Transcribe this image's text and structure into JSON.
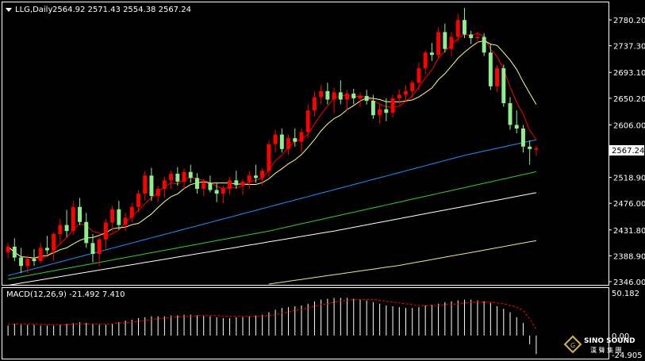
{
  "header": {
    "symbol": "LLG,Daily",
    "ohlc": "2564.92 2571.43 2554.38 2567.24"
  },
  "price_axis": {
    "ticks": [
      "2780.20",
      "2737.30",
      "2693.10",
      "2650.20",
      "2606.00",
      "2518.90",
      "2476.00",
      "2431.80",
      "2388.90",
      "2346.00"
    ],
    "current_price_label": "2567.24"
  },
  "macd": {
    "label": "MACD(12,26,9) -21.492 7.410",
    "top_label": "50.182",
    "zero_label": "0.00",
    "bottom_label": "-24.905"
  },
  "watermark": {
    "brand_line1": "SINO SOUND",
    "brand_line2": "漢 聲 集 團"
  },
  "colors": {
    "background": "#000000",
    "grid_border": "#ffffff",
    "candle_up": "#ff0000",
    "candle_down": "#90ee90",
    "ma_fast": "#ff0000",
    "ma_yellow": "#ffff80",
    "ma_blue": "#1e90ff",
    "ma_green": "#32cd32",
    "ma_white": "#ffffff",
    "ma_long": "#f0e68c",
    "macd_hist": "#ffffff",
    "macd_signal": "#ff0000"
  },
  "chart_data": {
    "type": "candlestick",
    "title": "LLG,Daily",
    "ylim": [
      2346.0,
      2800.0
    ],
    "candles": [
      [
        2395,
        2410,
        2385,
        2404
      ],
      [
        2404,
        2418,
        2380,
        2386
      ],
      [
        2386,
        2402,
        2360,
        2372
      ],
      [
        2372,
        2388,
        2360,
        2384
      ],
      [
        2384,
        2400,
        2372,
        2380
      ],
      [
        2380,
        2410,
        2376,
        2402
      ],
      [
        2402,
        2422,
        2392,
        2398
      ],
      [
        2398,
        2428,
        2380,
        2425
      ],
      [
        2425,
        2450,
        2410,
        2440
      ],
      [
        2440,
        2465,
        2420,
        2430
      ],
      [
        2430,
        2480,
        2424,
        2470
      ],
      [
        2470,
        2485,
        2440,
        2445
      ],
      [
        2445,
        2460,
        2402,
        2410
      ],
      [
        2410,
        2425,
        2378,
        2392
      ],
      [
        2392,
        2420,
        2372,
        2416
      ],
      [
        2416,
        2450,
        2400,
        2444
      ],
      [
        2444,
        2472,
        2430,
        2466
      ],
      [
        2466,
        2480,
        2432,
        2440
      ],
      [
        2440,
        2460,
        2430,
        2452
      ],
      [
        2452,
        2476,
        2444,
        2470
      ],
      [
        2470,
        2498,
        2462,
        2492
      ],
      [
        2492,
        2530,
        2480,
        2522
      ],
      [
        2522,
        2535,
        2480,
        2488
      ],
      [
        2488,
        2505,
        2478,
        2500
      ],
      [
        2500,
        2520,
        2486,
        2514
      ],
      [
        2514,
        2530,
        2500,
        2525
      ],
      [
        2525,
        2536,
        2505,
        2512
      ],
      [
        2512,
        2534,
        2500,
        2528
      ],
      [
        2528,
        2540,
        2510,
        2518
      ],
      [
        2518,
        2526,
        2492,
        2500
      ],
      [
        2500,
        2516,
        2488,
        2510
      ],
      [
        2510,
        2522,
        2494,
        2498
      ],
      [
        2498,
        2510,
        2478,
        2492
      ],
      [
        2492,
        2505,
        2476,
        2500
      ],
      [
        2500,
        2520,
        2490,
        2514
      ],
      [
        2514,
        2530,
        2500,
        2506
      ],
      [
        2506,
        2516,
        2490,
        2512
      ],
      [
        2512,
        2530,
        2500,
        2522
      ],
      [
        2522,
        2540,
        2510,
        2518
      ],
      [
        2518,
        2534,
        2505,
        2530
      ],
      [
        2530,
        2580,
        2520,
        2574
      ],
      [
        2574,
        2598,
        2560,
        2590
      ],
      [
        2590,
        2600,
        2560,
        2566
      ],
      [
        2566,
        2590,
        2556,
        2584
      ],
      [
        2584,
        2600,
        2570,
        2578
      ],
      [
        2578,
        2600,
        2560,
        2594
      ],
      [
        2594,
        2640,
        2584,
        2630
      ],
      [
        2630,
        2662,
        2620,
        2652
      ],
      [
        2652,
        2672,
        2640,
        2662
      ],
      [
        2662,
        2676,
        2640,
        2648
      ],
      [
        2648,
        2668,
        2626,
        2660
      ],
      [
        2660,
        2680,
        2640,
        2648
      ],
      [
        2648,
        2664,
        2630,
        2658
      ],
      [
        2658,
        2666,
        2640,
        2650
      ],
      [
        2650,
        2660,
        2636,
        2654
      ],
      [
        2654,
        2664,
        2640,
        2646
      ],
      [
        2646,
        2656,
        2616,
        2622
      ],
      [
        2622,
        2640,
        2608,
        2632
      ],
      [
        2632,
        2650,
        2612,
        2626
      ],
      [
        2626,
        2656,
        2618,
        2650
      ],
      [
        2650,
        2664,
        2640,
        2656
      ],
      [
        2656,
        2672,
        2644,
        2662
      ],
      [
        2662,
        2680,
        2650,
        2676
      ],
      [
        2676,
        2710,
        2664,
        2700
      ],
      [
        2700,
        2730,
        2690,
        2726
      ],
      [
        2726,
        2742,
        2712,
        2722
      ],
      [
        2722,
        2768,
        2716,
        2760
      ],
      [
        2760,
        2774,
        2726,
        2732
      ],
      [
        2732,
        2760,
        2720,
        2752
      ],
      [
        2752,
        2790,
        2744,
        2780
      ],
      [
        2780,
        2800,
        2750,
        2756
      ],
      [
        2756,
        2762,
        2740,
        2750
      ],
      [
        2750,
        2760,
        2742,
        2752
      ],
      [
        2752,
        2758,
        2720,
        2726
      ],
      [
        2726,
        2740,
        2664,
        2670
      ],
      [
        2670,
        2705,
        2660,
        2700
      ],
      [
        2700,
        2706,
        2636,
        2642
      ],
      [
        2642,
        2652,
        2598,
        2606
      ],
      [
        2606,
        2630,
        2592,
        2600
      ],
      [
        2600,
        2606,
        2560,
        2570
      ],
      [
        2570,
        2580,
        2540,
        2566
      ],
      [
        2564.92,
        2571.43,
        2554.38,
        2567.24
      ]
    ],
    "macd_hist": [
      12,
      14,
      13,
      13,
      13,
      12,
      12,
      12,
      13,
      14,
      15,
      16,
      15,
      14,
      13,
      13,
      14,
      16,
      18,
      19,
      21,
      22,
      23,
      23,
      23,
      24,
      24,
      25,
      25,
      24,
      24,
      23,
      22,
      21,
      21,
      22,
      22,
      23,
      24,
      25,
      28,
      31,
      33,
      34,
      35,
      36,
      38,
      41,
      43,
      44,
      45,
      45,
      45,
      44,
      43,
      42,
      40,
      38,
      36,
      35,
      34,
      33,
      33,
      34,
      36,
      37,
      38,
      40,
      41,
      42,
      43,
      43,
      42,
      41,
      39,
      35,
      32,
      28,
      22,
      15,
      -10,
      -21.492
    ],
    "macd_signal": [
      14,
      14,
      14,
      14,
      14,
      14,
      13,
      13,
      13,
      13,
      14,
      14,
      14,
      14,
      14,
      14,
      14,
      15,
      15,
      16,
      17,
      18,
      19,
      20,
      21,
      22,
      22,
      23,
      23,
      24,
      24,
      24,
      24,
      23,
      23,
      23,
      23,
      23,
      23,
      23,
      24,
      25,
      27,
      28,
      30,
      31,
      33,
      35,
      37,
      38,
      40,
      41,
      42,
      43,
      43,
      43,
      43,
      42,
      41,
      40,
      39,
      38,
      37,
      36,
      36,
      36,
      36,
      37,
      37,
      38,
      39,
      40,
      40,
      40,
      40,
      39,
      38,
      36,
      34,
      30,
      20,
      7.41
    ]
  }
}
